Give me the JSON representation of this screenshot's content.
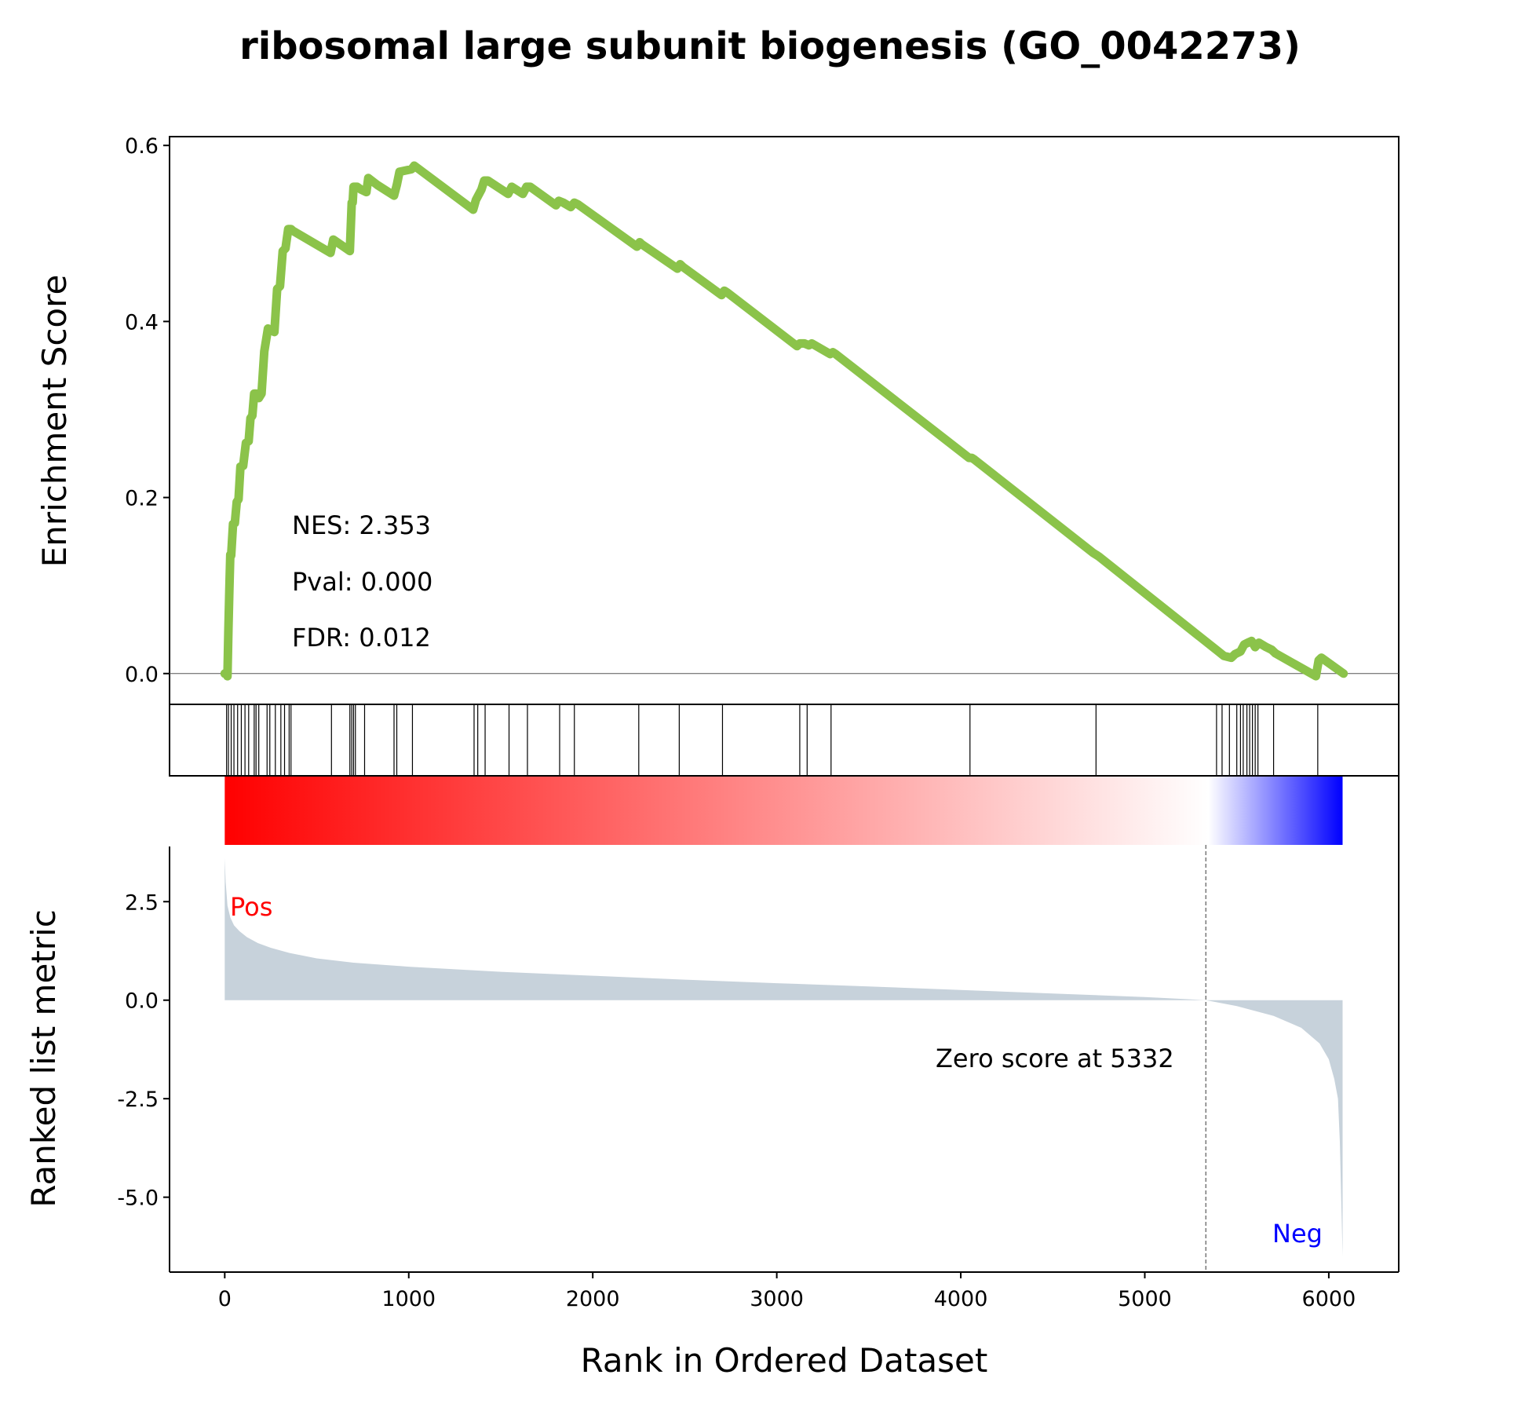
{
  "chart_data": {
    "type": "line",
    "title": "ribosomal large subunit biogenesis (GO_0042273)",
    "xlabel": "Rank in Ordered Dataset",
    "xlim": [
      -300,
      6380
    ],
    "x_ticks": [
      "0",
      "1000",
      "2000",
      "3000",
      "4000",
      "5000",
      "6000"
    ],
    "enrichment": {
      "ylabel": "Enrichment Score",
      "ylim": [
        -0.035,
        0.61
      ],
      "y_ticks": [
        "0.0",
        "0.2",
        "0.4",
        "0.6"
      ],
      "line_color": "#8bc34a",
      "x": [
        0,
        10,
        15,
        20,
        25,
        30,
        35,
        45,
        55,
        65,
        75,
        85,
        100,
        115,
        130,
        140,
        150,
        160,
        170,
        185,
        200,
        215,
        235,
        250,
        270,
        285,
        300,
        315,
        330,
        345,
        360,
        370,
        575,
        590,
        660,
        680,
        690,
        695,
        700,
        720,
        740,
        770,
        780,
        830,
        920,
        935,
        950,
        1015,
        1030,
        1350,
        1365,
        1395,
        1410,
        1430,
        1540,
        1560,
        1620,
        1640,
        1660,
        1800,
        1815,
        1840,
        1880,
        1900,
        1920,
        2240,
        2255,
        2265,
        2460,
        2475,
        2490,
        2700,
        2715,
        2730,
        3110,
        3125,
        3150,
        3175,
        3190,
        3290,
        3305,
        3320,
        4045,
        4060,
        4075,
        4720,
        4735,
        4750,
        5370,
        5400,
        5430,
        5470,
        5490,
        5520,
        5540,
        5560,
        5580,
        5600,
        5620,
        5660,
        5690,
        5710,
        5930,
        5945,
        5960,
        6080
      ],
      "y": [
        0.0,
        0.0,
        -0.003,
        0.05,
        0.095,
        0.135,
        0.134,
        0.17,
        0.171,
        0.195,
        0.198,
        0.235,
        0.236,
        0.262,
        0.264,
        0.29,
        0.293,
        0.318,
        0.318,
        0.313,
        0.318,
        0.366,
        0.392,
        0.39,
        0.388,
        0.437,
        0.44,
        0.48,
        0.483,
        0.505,
        0.505,
        0.503,
        0.478,
        0.493,
        0.483,
        0.48,
        0.535,
        0.535,
        0.553,
        0.553,
        0.55,
        0.547,
        0.563,
        0.555,
        0.543,
        0.555,
        0.57,
        0.573,
        0.577,
        0.527,
        0.538,
        0.55,
        0.56,
        0.56,
        0.545,
        0.553,
        0.545,
        0.553,
        0.553,
        0.532,
        0.537,
        0.535,
        0.53,
        0.535,
        0.533,
        0.485,
        0.49,
        0.488,
        0.46,
        0.465,
        0.462,
        0.43,
        0.435,
        0.433,
        0.372,
        0.375,
        0.375,
        0.373,
        0.375,
        0.363,
        0.365,
        0.363,
        0.245,
        0.245,
        0.243,
        0.137,
        0.135,
        0.133,
        0.03,
        0.025,
        0.02,
        0.018,
        0.022,
        0.025,
        0.033,
        0.035,
        0.037,
        0.03,
        0.035,
        0.03,
        0.027,
        0.023,
        -0.003,
        0.015,
        0.018,
        0.0
      ]
    },
    "hits": [
      10,
      20,
      35,
      50,
      70,
      90,
      110,
      130,
      160,
      170,
      185,
      230,
      245,
      275,
      305,
      325,
      350,
      360,
      580,
      680,
      690,
      700,
      710,
      760,
      920,
      935,
      1020,
      1355,
      1375,
      1415,
      1545,
      1645,
      1820,
      1900,
      2250,
      2470,
      2705,
      3125,
      3165,
      3295,
      4050,
      4735,
      5390,
      5420,
      5460,
      5500,
      5520,
      5535,
      5555,
      5570,
      5585,
      5600,
      5615,
      5700,
      5940
    ],
    "gradient": {
      "from": "#ff0000",
      "mid": "#ffffff",
      "mid_at": 0.88,
      "to": "#0000ff",
      "x_range": [
        0,
        6075
      ]
    },
    "ranked_metric": {
      "ylabel": "Ranked list metric",
      "ylim": [
        -6.9,
        3.9
      ],
      "y_ticks": [
        "2.5",
        "0.0",
        "-2.5",
        "-5.0"
      ],
      "fill_color": "#c7d2db",
      "zero_score_at": 5332,
      "zero_label": "Zero score at 5332",
      "pos_label": "Pos",
      "pos_color": "#ff0000",
      "neg_label": "Neg",
      "neg_color": "#0000ff",
      "x": [
        0,
        5,
        15,
        30,
        50,
        80,
        120,
        180,
        250,
        350,
        500,
        700,
        1000,
        1500,
        2000,
        2500,
        3000,
        3500,
        4000,
        4500,
        5000,
        5332,
        5500,
        5700,
        5850,
        5950,
        6000,
        6030,
        6050,
        6060,
        6070,
        6075
      ],
      "y": [
        3.6,
        3.0,
        2.4,
        2.1,
        1.9,
        1.75,
        1.6,
        1.45,
        1.33,
        1.2,
        1.06,
        0.95,
        0.85,
        0.72,
        0.62,
        0.52,
        0.43,
        0.35,
        0.26,
        0.17,
        0.08,
        0.0,
        -0.15,
        -0.4,
        -0.7,
        -1.1,
        -1.5,
        -2.0,
        -2.5,
        -3.6,
        -5.5,
        -6.5
      ]
    },
    "stats": {
      "nes": "NES: 2.353",
      "pval": "Pval: 0.000",
      "fdr": "FDR: 0.012"
    }
  }
}
